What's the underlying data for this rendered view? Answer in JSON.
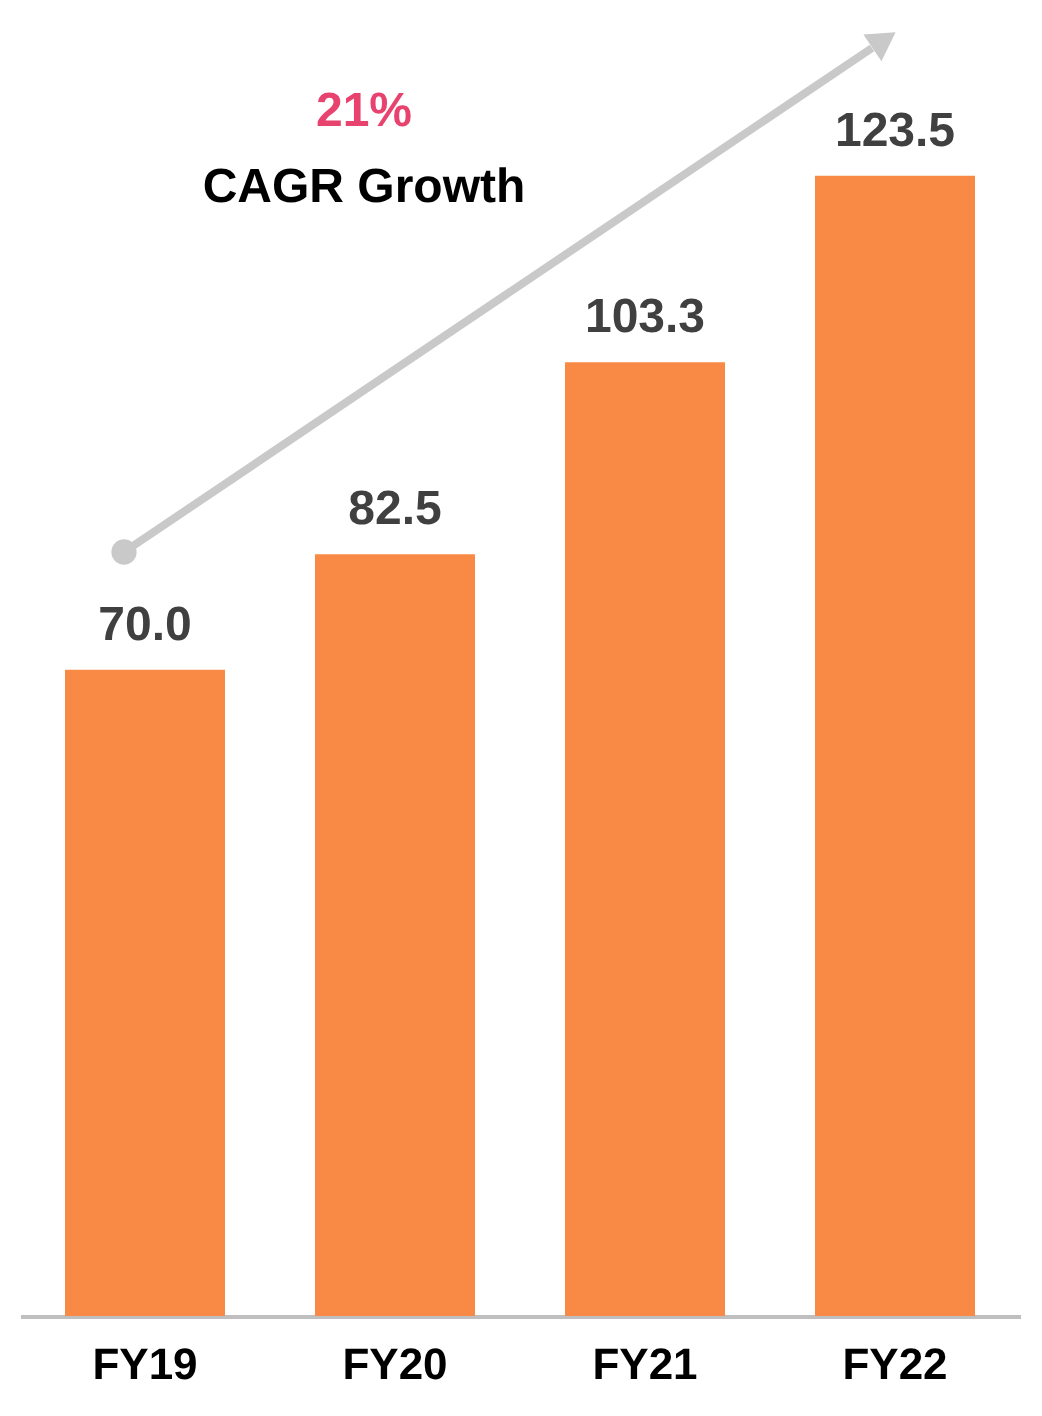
{
  "chart_data": {
    "type": "bar",
    "categories": [
      "FY19",
      "FY20",
      "FY21",
      "FY22"
    ],
    "series": [
      {
        "color": "#f98a45",
        "values": [
          70.0,
          82.5,
          103.3,
          123.5
        ],
        "value_labels": [
          "70.0",
          "82.5",
          "103.3",
          "123.5"
        ]
      }
    ],
    "grid": false,
    "annotations": [
      "21%",
      "CAGR Growth"
    ]
  }
}
